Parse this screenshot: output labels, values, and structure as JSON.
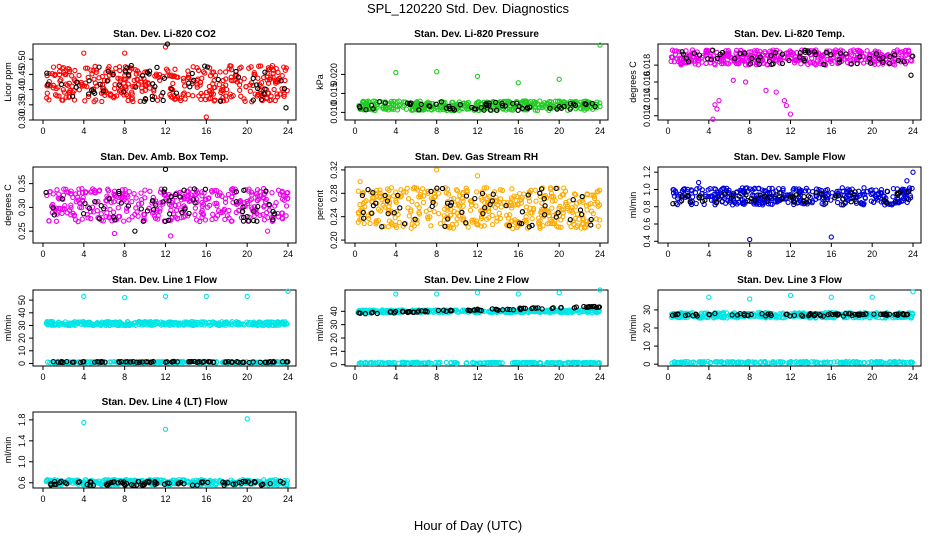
{
  "main_title": "SPL_120220  Std. Dev. Diagnostics",
  "x_axis_label": "Hour of Day (UTC)",
  "chart_data": [
    {
      "type": "scatter",
      "title": "Stan. Dev. Li-820 CO2",
      "ylabel": "Licor ppm",
      "xlim": [
        0,
        24
      ],
      "ylim": [
        0.3,
        0.55
      ],
      "xticks": [
        0,
        4,
        8,
        12,
        16,
        20,
        24
      ],
      "yticks": [
        {
          "v": 0.3,
          "l": "0.30"
        },
        {
          "v": 0.35,
          "l": "0.35"
        },
        {
          "v": 0.4,
          "l": "0.40"
        },
        {
          "v": 0.45,
          "l": "0.45"
        },
        {
          "v": 0.5,
          "l": "0.50"
        }
      ],
      "series": [
        {
          "color": "#ff0000",
          "band": [
            0.36,
            0.48
          ],
          "n": 380,
          "outliers": [
            [
              12,
              0.54
            ],
            [
              16,
              0.31
            ],
            [
              4,
              0.52
            ],
            [
              8,
              0.52
            ]
          ]
        },
        {
          "color": "#000000",
          "band": [
            0.36,
            0.48
          ],
          "n": 60,
          "outliers": [
            [
              12.2,
              0.55
            ],
            [
              23.8,
              0.34
            ]
          ]
        }
      ]
    },
    {
      "type": "scatter",
      "title": "Stan. Dev. Li-820 Pressure",
      "ylabel": "kPa",
      "xlim": [
        0,
        24
      ],
      "ylim": [
        0.008,
        0.028
      ],
      "xticks": [
        0,
        4,
        8,
        12,
        16,
        20,
        24
      ],
      "yticks": [
        {
          "v": 0.01,
          "l": "0.010"
        },
        {
          "v": 0.015,
          "l": "0.015"
        },
        {
          "v": 0.02,
          "l": "0.020"
        }
      ],
      "series": [
        {
          "color": "#22cc22",
          "band": [
            0.0105,
            0.013
          ],
          "n": 380,
          "outliers": [
            [
              4,
              0.0205
            ],
            [
              8,
              0.0207
            ],
            [
              12,
              0.0195
            ],
            [
              16,
              0.0178
            ],
            [
              20,
              0.0187
            ],
            [
              24,
              0.0277
            ]
          ]
        },
        {
          "color": "#000000",
          "band": [
            0.0105,
            0.0128
          ],
          "n": 60,
          "outliers": []
        }
      ]
    },
    {
      "type": "scatter",
      "title": "Stan. Dev. Li-820 Temp.",
      "ylabel": "degrees C",
      "xlim": [
        0,
        24
      ],
      "ylim": [
        0.0115,
        0.0205
      ],
      "xticks": [
        0,
        4,
        8,
        12,
        16,
        20,
        24
      ],
      "yticks": [
        {
          "v": 0.012,
          "l": "0.012"
        },
        {
          "v": 0.014,
          "l": "0.014"
        },
        {
          "v": 0.016,
          "l": "0.016"
        },
        {
          "v": 0.018,
          "l": "0.018"
        }
      ],
      "series": [
        {
          "color": "#ee00ee",
          "band": [
            0.018,
            0.0198
          ],
          "n": 380,
          "outliers": [
            [
              4.6,
              0.0133
            ],
            [
              4.8,
              0.0128
            ],
            [
              5.0,
              0.0138
            ],
            [
              9.6,
              0.015
            ],
            [
              10.6,
              0.0148
            ],
            [
              11.4,
              0.0138
            ],
            [
              11.6,
              0.0132
            ],
            [
              7.6,
              0.016
            ],
            [
              12.0,
              0.0122
            ],
            [
              4.4,
              0.0116
            ],
            [
              6.4,
              0.0162
            ]
          ]
        },
        {
          "color": "#000000",
          "band": [
            0.018,
            0.0198
          ],
          "n": 60,
          "outliers": [
            [
              23.8,
              0.0168
            ]
          ]
        }
      ]
    },
    {
      "type": "scatter",
      "title": "Stan. Dev. Amb. Box Temp.",
      "ylabel": "degrees C",
      "xlim": [
        0,
        24
      ],
      "ylim": [
        0.225,
        0.385
      ],
      "xticks": [
        0,
        4,
        8,
        12,
        16,
        20,
        24
      ],
      "yticks": [
        {
          "v": 0.25,
          "l": "0.25"
        },
        {
          "v": 0.3,
          "l": "0.30"
        },
        {
          "v": 0.35,
          "l": "0.35"
        }
      ],
      "series": [
        {
          "color": "#ee00ee",
          "band": [
            0.27,
            0.34
          ],
          "n": 380,
          "outliers": [
            [
              12.5,
              0.24
            ],
            [
              7.0,
              0.245
            ],
            [
              22.0,
              0.25
            ]
          ]
        },
        {
          "color": "#000000",
          "band": [
            0.27,
            0.34
          ],
          "n": 60,
          "outliers": [
            [
              12.0,
              0.38
            ],
            [
              9.0,
              0.25
            ]
          ]
        }
      ]
    },
    {
      "type": "scatter",
      "title": "Stan. Dev. Gas Stream RH",
      "ylabel": "percent",
      "xlim": [
        0,
        24
      ],
      "ylim": [
        0.195,
        0.325
      ],
      "xticks": [
        0,
        4,
        8,
        12,
        16,
        20,
        24
      ],
      "yticks": [
        {
          "v": 0.2,
          "l": "0.20"
        },
        {
          "v": 0.24,
          "l": "0.24"
        },
        {
          "v": 0.28,
          "l": "0.28"
        },
        {
          "v": 0.32,
          "l": "0.32"
        }
      ],
      "series": [
        {
          "color": "#ffaa00",
          "band": [
            0.22,
            0.29
          ],
          "n": 420,
          "outliers": [
            [
              8,
              0.32
            ],
            [
              12,
              0.31
            ],
            [
              0.5,
              0.3
            ]
          ]
        },
        {
          "color": "#000000",
          "band": [
            0.22,
            0.29
          ],
          "n": 60,
          "outliers": []
        }
      ]
    },
    {
      "type": "scatter",
      "title": "Stan. Dev. Sample Flow",
      "ylabel": "ml/min",
      "xlim": [
        0,
        24
      ],
      "ylim": [
        0.38,
        1.26
      ],
      "xticks": [
        0,
        4,
        8,
        12,
        16,
        20,
        24
      ],
      "yticks": [
        {
          "v": 0.4,
          "l": "0.4"
        },
        {
          "v": 0.6,
          "l": "0.6"
        },
        {
          "v": 0.8,
          "l": "0.8"
        },
        {
          "v": 1.0,
          "l": "1.0"
        },
        {
          "v": 1.2,
          "l": "1.2"
        }
      ],
      "series": [
        {
          "color": "#0000dd",
          "band": [
            0.82,
            1.02
          ],
          "n": 380,
          "outliers": [
            [
              8,
              0.42
            ],
            [
              16,
              0.45
            ],
            [
              24,
              1.2
            ],
            [
              3,
              1.08
            ],
            [
              23.4,
              1.1
            ]
          ]
        },
        {
          "color": "#000000",
          "band": [
            0.82,
            0.98
          ],
          "n": 60,
          "outliers": []
        }
      ]
    },
    {
      "type": "scatter",
      "title": "Stan. Dev. Line 1 Flow",
      "ylabel": "ml/min",
      "xlim": [
        0,
        24
      ],
      "ylim": [
        -2,
        58
      ],
      "xticks": [
        0,
        4,
        8,
        12,
        16,
        20,
        24
      ],
      "yticks": [
        {
          "v": 0,
          "l": "0"
        },
        {
          "v": 10,
          "l": "10"
        },
        {
          "v": 20,
          "l": "20"
        },
        {
          "v": 30,
          "l": "30"
        },
        {
          "v": 40,
          "l": "40"
        },
        {
          "v": 50,
          "l": "50"
        }
      ],
      "series": [
        {
          "color": "#00e5e5",
          "band": [
            30,
            33
          ],
          "n": 380,
          "outliers": [
            [
              4,
              53
            ],
            [
              8,
              52
            ],
            [
              12,
              53
            ],
            [
              16,
              53
            ],
            [
              20,
              53
            ],
            [
              24,
              57
            ]
          ]
        },
        {
          "color": "#00e5e5",
          "band": [
            0.5,
            1.5
          ],
          "n": 200,
          "outliers": []
        },
        {
          "color": "#000000",
          "band": [
            0.8,
            1.6
          ],
          "n": 80,
          "outliers": []
        }
      ]
    },
    {
      "type": "scatter",
      "title": "Stan. Dev. Line 2 Flow",
      "ylabel": "ml/min",
      "xlim": [
        0,
        24
      ],
      "ylim": [
        -1,
        56
      ],
      "xticks": [
        0,
        4,
        8,
        12,
        16,
        20,
        24
      ],
      "yticks": [
        {
          "v": 0,
          "l": "0"
        },
        {
          "v": 10,
          "l": "10"
        },
        {
          "v": 20,
          "l": "20"
        },
        {
          "v": 30,
          "l": "30"
        },
        {
          "v": 40,
          "l": "40"
        }
      ],
      "series": [
        {
          "color": "#00e5e5",
          "band": [
            39,
            41
          ],
          "n": 380,
          "outliers": [
            [
              4,
              53
            ],
            [
              8,
              53
            ],
            [
              12,
              54
            ],
            [
              16,
              53
            ],
            [
              20,
              54
            ],
            [
              24,
              56
            ]
          ]
        },
        {
          "color": "#00e5e5",
          "band": [
            0.8,
            1.8
          ],
          "n": 200,
          "outliers": []
        },
        {
          "color": "#000000",
          "trend": [
            38.5,
            43.5
          ],
          "n": 80,
          "outliers": []
        }
      ]
    },
    {
      "type": "scatter",
      "title": "Stan. Dev. Line 3 Flow",
      "ylabel": "ml/min",
      "xlim": [
        0,
        24
      ],
      "ylim": [
        -1,
        41
      ],
      "xticks": [
        0,
        4,
        8,
        12,
        16,
        20,
        24
      ],
      "yticks": [
        {
          "v": 0,
          "l": "0"
        },
        {
          "v": 10,
          "l": "10"
        },
        {
          "v": 20,
          "l": "20"
        },
        {
          "v": 30,
          "l": "30"
        }
      ],
      "series": [
        {
          "color": "#00e5e5",
          "band": [
            25.5,
            28.5
          ],
          "n": 380,
          "outliers": [
            [
              4,
              37
            ],
            [
              8,
              36
            ],
            [
              12,
              38
            ],
            [
              16,
              37
            ],
            [
              20,
              37
            ],
            [
              24,
              40
            ]
          ]
        },
        {
          "color": "#00e5e5",
          "band": [
            0.5,
            1.5
          ],
          "n": 200,
          "outliers": []
        },
        {
          "color": "#000000",
          "band": [
            26.5,
            28
          ],
          "n": 80,
          "outliers": []
        }
      ]
    },
    {
      "type": "scatter",
      "title": "Stan. Dev. Line 4 (LT) Flow",
      "ylabel": "ml/min",
      "xlim": [
        0,
        24
      ],
      "ylim": [
        0.5,
        1.95
      ],
      "xticks": [
        0,
        4,
        8,
        12,
        16,
        20,
        24
      ],
      "yticks": [
        {
          "v": 0.6,
          "l": "0.6"
        },
        {
          "v": 1.0,
          "l": "1.0"
        },
        {
          "v": 1.4,
          "l": "1.4"
        },
        {
          "v": 1.8,
          "l": "1.8"
        }
      ],
      "series": [
        {
          "color": "#00e5e5",
          "band": [
            0.56,
            0.66
          ],
          "n": 380,
          "outliers": [
            [
              4,
              1.75
            ],
            [
              12,
              1.62
            ],
            [
              20,
              1.82
            ]
          ]
        },
        {
          "color": "#000000",
          "band": [
            0.55,
            0.63
          ],
          "n": 80,
          "outliers": []
        }
      ]
    }
  ]
}
